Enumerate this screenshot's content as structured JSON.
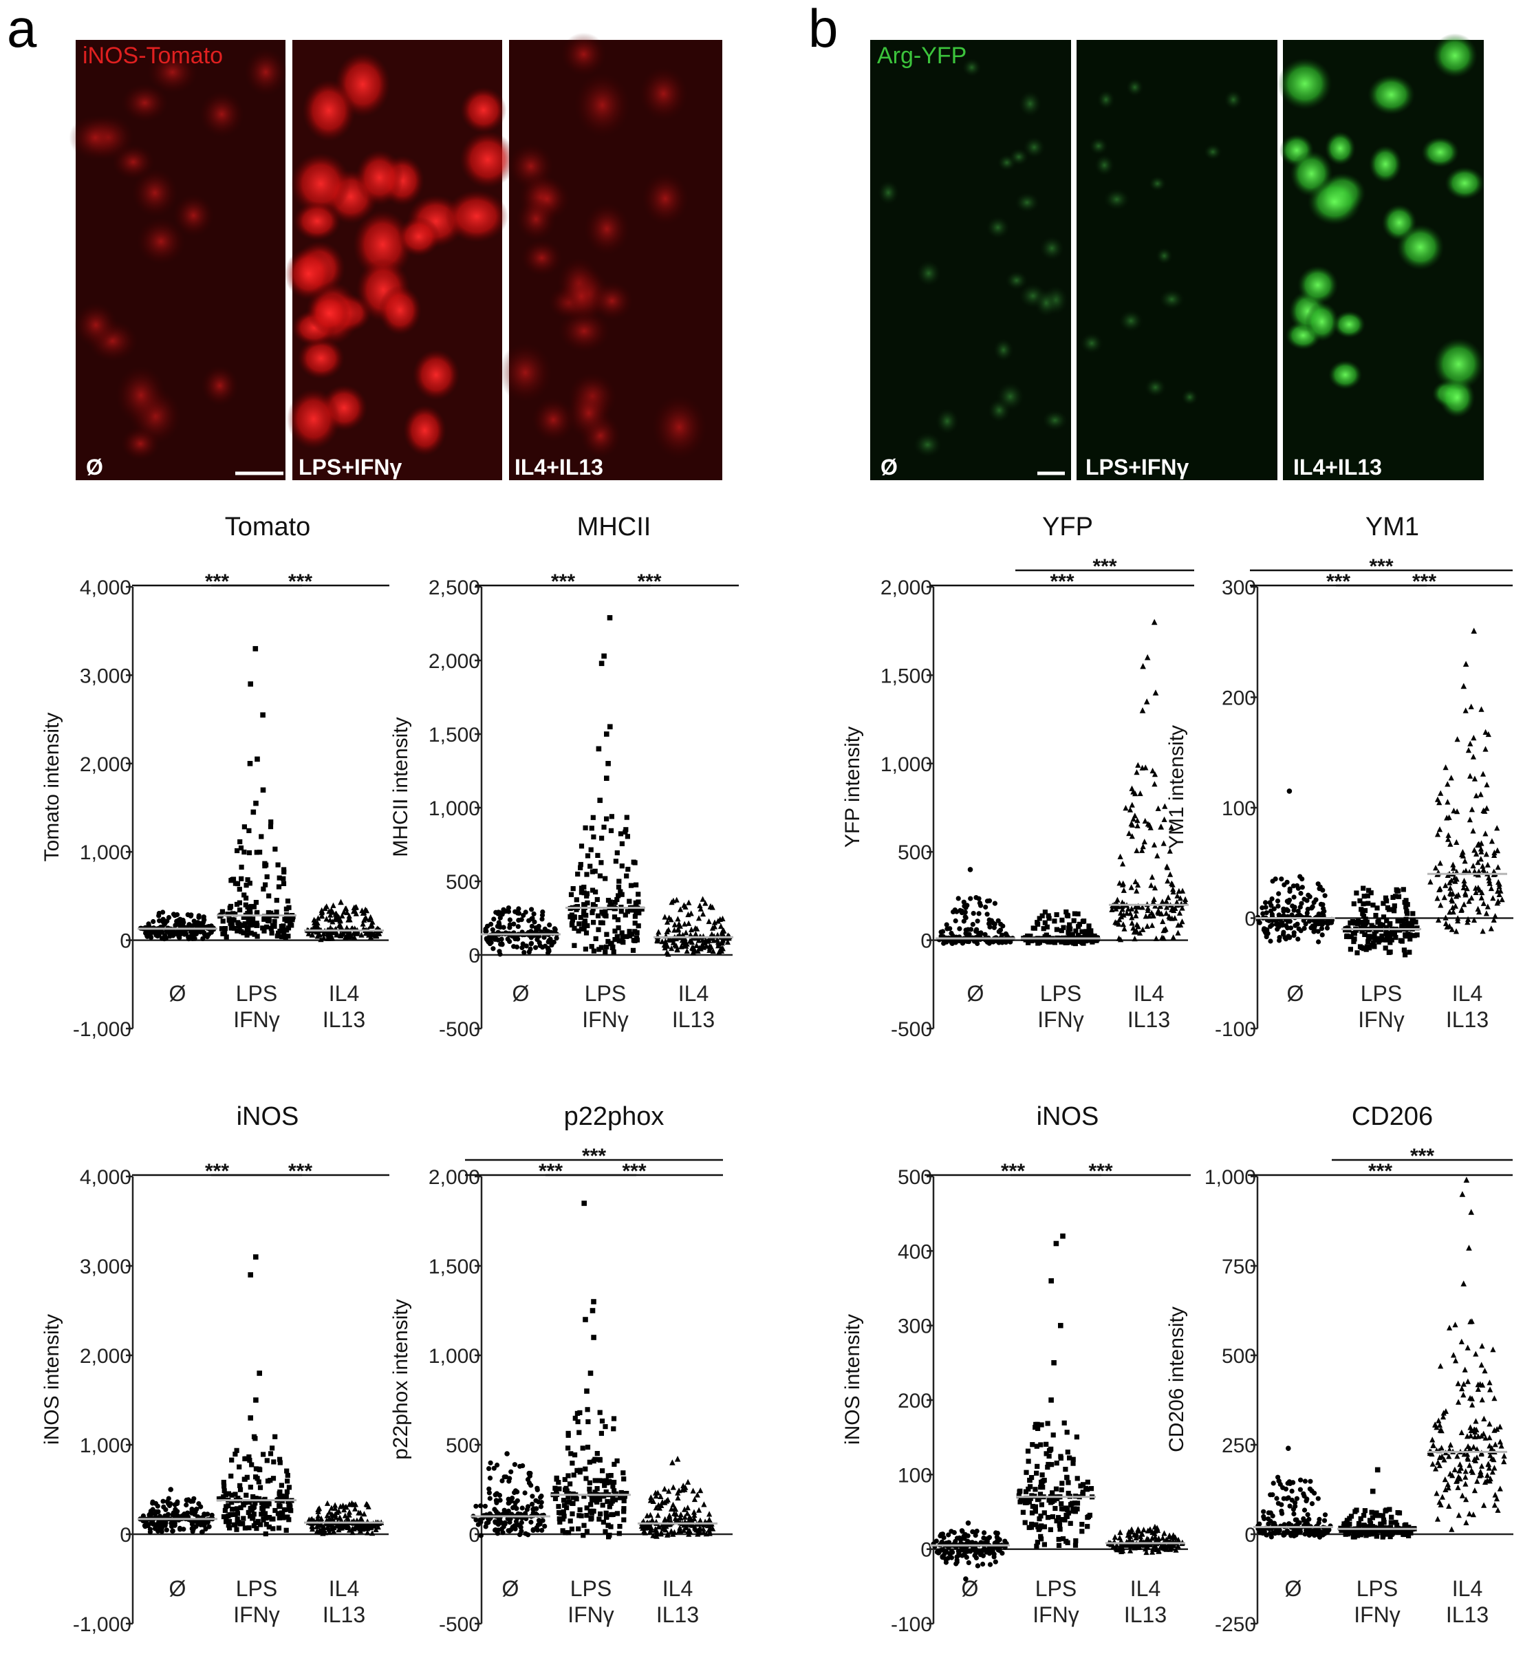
{
  "panels": {
    "a": {
      "letter": "a",
      "channel_label": "iNOS-Tomato",
      "channel_color": "#e02020",
      "image_labels": [
        "Ø",
        "LPS+IFNγ",
        "IL4+IL13"
      ]
    },
    "b": {
      "letter": "b",
      "channel_label": "Arg-YFP",
      "channel_color": "#3cc43c",
      "image_labels": [
        "Ø",
        "LPS+IFNγ",
        "IL4+IL13"
      ]
    }
  },
  "chart_data": [
    {
      "id": "tomato",
      "type": "scatter",
      "title": "Tomato",
      "ylabel": "Tomato intensity",
      "ylim": [
        -1000,
        4000
      ],
      "yticks": [
        -1000,
        0,
        1000,
        2000,
        3000,
        4000
      ],
      "ytick_labels": [
        "-1,000",
        "0",
        "1,000",
        "2,000",
        "3,000",
        "4,000"
      ],
      "categories": [
        [
          "Ø"
        ],
        [
          "LPS",
          "IFNγ"
        ],
        [
          "IL4",
          "IL13"
        ]
      ],
      "markers": [
        "circle",
        "square",
        "triangle"
      ],
      "groups": [
        {
          "median": 130,
          "min": 0,
          "max": 320,
          "outliers": []
        },
        {
          "median": 280,
          "min": 0,
          "max": 1350,
          "outliers": [
            1450,
            1550,
            1700,
            2000,
            2050,
            2550,
            2900,
            3300
          ]
        },
        {
          "median": 110,
          "min": 0,
          "max": 400,
          "outliers": [
            430
          ]
        }
      ],
      "significance": [
        {
          "from": 0,
          "to": 1,
          "label": "***",
          "level": 1
        },
        {
          "from": 1,
          "to": 2,
          "label": "***",
          "level": 1
        }
      ]
    },
    {
      "id": "mhcii",
      "type": "scatter",
      "title": "MHCII",
      "ylabel": "MHCII intensity",
      "ylim": [
        -500,
        2500
      ],
      "yticks": [
        -500,
        0,
        500,
        1000,
        1500,
        2000,
        2500
      ],
      "ytick_labels": [
        "-500",
        "0",
        "500",
        "1,000",
        "1,500",
        "2,000",
        "2,500"
      ],
      "categories": [
        [
          "Ø"
        ],
        [
          "LPS",
          "IFNγ"
        ],
        [
          "IL4",
          "IL13"
        ]
      ],
      "markers": [
        "circle",
        "square",
        "triangle"
      ],
      "groups": [
        {
          "median": 140,
          "min": 0,
          "max": 340,
          "outliers": []
        },
        {
          "median": 320,
          "min": 0,
          "max": 950,
          "outliers": [
            1050,
            1200,
            1300,
            1400,
            1500,
            1550,
            1980,
            2030,
            2290
          ]
        },
        {
          "median": 120,
          "min": 0,
          "max": 380,
          "outliers": []
        }
      ],
      "significance": [
        {
          "from": 0,
          "to": 1,
          "label": "***",
          "level": 1
        },
        {
          "from": 1,
          "to": 2,
          "label": "***",
          "level": 1
        }
      ]
    },
    {
      "id": "yfp",
      "type": "scatter",
      "title": "YFP",
      "ylabel": "YFP intensity",
      "ylim": [
        -500,
        2000
      ],
      "yticks": [
        -500,
        0,
        500,
        1000,
        1500,
        2000
      ],
      "ytick_labels": [
        "-500",
        "0",
        "500",
        "1,000",
        "1,500",
        "2,000"
      ],
      "categories": [
        [
          "Ø"
        ],
        [
          "LPS",
          "IFNγ"
        ],
        [
          "IL4",
          "IL13"
        ]
      ],
      "markers": [
        "circle",
        "square",
        "triangle"
      ],
      "groups": [
        {
          "median": 10,
          "min": -20,
          "max": 250,
          "outliers": [
            400
          ]
        },
        {
          "median": 10,
          "min": -20,
          "max": 160,
          "outliers": []
        },
        {
          "median": 200,
          "min": -20,
          "max": 1000,
          "outliers": [
            1300,
            1350,
            1400,
            1550,
            1600,
            1800
          ]
        }
      ],
      "significance": [
        {
          "from": 0,
          "to": 2,
          "label": "***",
          "level": 1
        },
        {
          "from": 1,
          "to": 2,
          "label": "***",
          "level": 2
        }
      ]
    },
    {
      "id": "ym1",
      "type": "scatter",
      "title": "YM1",
      "ylabel": "YM1 intensity",
      "ylim": [
        -100,
        300
      ],
      "yticks": [
        -100,
        0,
        100,
        200,
        300
      ],
      "ytick_labels": [
        "-100",
        "0",
        "100",
        "200",
        "300"
      ],
      "categories": [
        [
          "Ø"
        ],
        [
          "LPS",
          "IFNγ"
        ],
        [
          "IL4",
          "IL13"
        ]
      ],
      "markers": [
        "circle",
        "square",
        "triangle"
      ],
      "groups": [
        {
          "median": 0,
          "min": -22,
          "max": 40,
          "outliers": [
            115
          ]
        },
        {
          "median": -10,
          "min": -35,
          "max": 30,
          "outliers": []
        },
        {
          "median": 40,
          "min": -15,
          "max": 200,
          "outliers": [
            210,
            230,
            260
          ]
        }
      ],
      "significance": [
        {
          "from": 0,
          "to": 1,
          "label": "***",
          "level": 1
        },
        {
          "from": 1,
          "to": 2,
          "label": "***",
          "level": 1
        },
        {
          "from": 0,
          "to": 2,
          "label": "***",
          "level": 2
        }
      ]
    },
    {
      "id": "inos_a",
      "type": "scatter",
      "title": "iNOS",
      "ylabel": "iNOS intensity",
      "ylim": [
        -1000,
        4000
      ],
      "yticks": [
        -1000,
        0,
        1000,
        2000,
        3000,
        4000
      ],
      "ytick_labels": [
        "-1,000",
        "0",
        "1,000",
        "2,000",
        "3,000",
        "4,000"
      ],
      "categories": [
        [
          "Ø"
        ],
        [
          "LPS",
          "IFNγ"
        ],
        [
          "IL4",
          "IL13"
        ]
      ],
      "markers": [
        "circle",
        "square",
        "triangle"
      ],
      "groups": [
        {
          "median": 170,
          "min": 0,
          "max": 400,
          "outliers": [
            500
          ]
        },
        {
          "median": 380,
          "min": 0,
          "max": 1100,
          "outliers": [
            1300,
            1500,
            1800,
            2900,
            3100
          ]
        },
        {
          "median": 130,
          "min": 0,
          "max": 380,
          "outliers": []
        }
      ],
      "significance": [
        {
          "from": 0,
          "to": 1,
          "label": "***",
          "level": 1
        },
        {
          "from": 1,
          "to": 2,
          "label": "***",
          "level": 1
        }
      ]
    },
    {
      "id": "p22phox",
      "type": "scatter",
      "title": "p22phox",
      "ylabel": "p22phox intensity",
      "ylim": [
        -500,
        2000
      ],
      "yticks": [
        -500,
        0,
        500,
        1000,
        1500,
        2000
      ],
      "ytick_labels": [
        "-500",
        "0",
        "500",
        "1,000",
        "1,500",
        "2,000"
      ],
      "categories": [
        [
          "Ø"
        ],
        [
          "LPS",
          "IFNγ"
        ],
        [
          "IL4",
          "IL13"
        ]
      ],
      "markers": [
        "circle",
        "square",
        "triangle"
      ],
      "groups": [
        {
          "median": 100,
          "min": -20,
          "max": 400,
          "outliers": [
            450
          ]
        },
        {
          "median": 220,
          "min": -20,
          "max": 700,
          "outliers": [
            800,
            900,
            1100,
            1200,
            1250,
            1300,
            1850
          ]
        },
        {
          "median": 60,
          "min": -20,
          "max": 300,
          "outliers": [
            400,
            420
          ]
        }
      ],
      "significance": [
        {
          "from": 0,
          "to": 1,
          "label": "***",
          "level": 1
        },
        {
          "from": 1,
          "to": 2,
          "label": "***",
          "level": 1
        },
        {
          "from": 0,
          "to": 2,
          "label": "***",
          "level": 2
        }
      ]
    },
    {
      "id": "inos_b",
      "type": "scatter",
      "title": "iNOS",
      "ylabel": "iNOS intensity",
      "ylim": [
        -100,
        500
      ],
      "yticks": [
        -100,
        0,
        100,
        200,
        300,
        400,
        500
      ],
      "ytick_labels": [
        "-100",
        "0",
        "100",
        "200",
        "300",
        "400",
        "500"
      ],
      "categories": [
        [
          "Ø"
        ],
        [
          "LPS",
          "IFNγ"
        ],
        [
          "IL4",
          "IL13"
        ]
      ],
      "markers": [
        "circle",
        "square",
        "triangle"
      ],
      "groups": [
        {
          "median": 5,
          "min": -25,
          "max": 25,
          "outliers": [
            -40,
            35
          ]
        },
        {
          "median": 70,
          "min": 0,
          "max": 170,
          "outliers": [
            200,
            250,
            300,
            360,
            410,
            420
          ]
        },
        {
          "median": 8,
          "min": -5,
          "max": 30,
          "outliers": []
        }
      ],
      "significance": [
        {
          "from": 0,
          "to": 1,
          "label": "***",
          "level": 1
        },
        {
          "from": 1,
          "to": 2,
          "label": "***",
          "level": 1
        }
      ]
    },
    {
      "id": "cd206",
      "type": "scatter",
      "title": "CD206",
      "ylabel": "CD206 intensity",
      "ylim": [
        -250,
        1000
      ],
      "yticks": [
        -250,
        0,
        250,
        500,
        750,
        1000
      ],
      "ytick_labels": [
        "-250",
        "0",
        "250",
        "500",
        "750",
        "1,000"
      ],
      "categories": [
        [
          "Ø"
        ],
        [
          "LPS",
          "IFNγ"
        ],
        [
          "IL4",
          "IL13"
        ]
      ],
      "markers": [
        "circle",
        "square",
        "triangle"
      ],
      "groups": [
        {
          "median": 20,
          "min": -10,
          "max": 160,
          "outliers": [
            240
          ]
        },
        {
          "median": 15,
          "min": -10,
          "max": 70,
          "outliers": [
            120,
            180
          ]
        },
        {
          "median": 230,
          "min": -5,
          "max": 600,
          "outliers": [
            700,
            800,
            900,
            950,
            990
          ]
        }
      ],
      "significance": [
        {
          "from": 0,
          "to": 2,
          "label": "***",
          "level": 1
        },
        {
          "from": 1,
          "to": 2,
          "label": "***",
          "level": 2
        }
      ]
    }
  ]
}
